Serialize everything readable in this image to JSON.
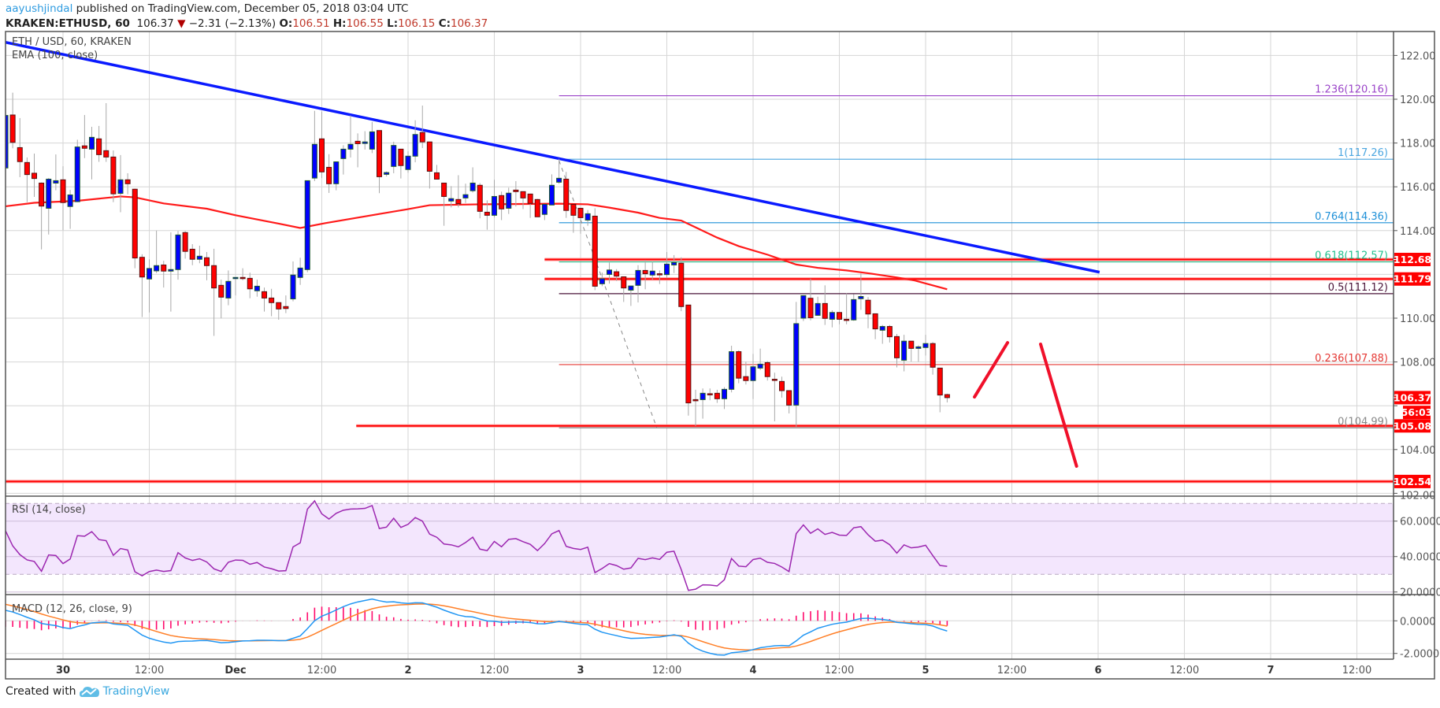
{
  "header": {
    "author": "aayushjindal",
    "published": "published on TradingView.com, December 05, 2018 03:04 UTC",
    "symbol": "KRAKEN:ETHUSD, 60",
    "last": "106.37",
    "change": "−2.31 (−2.13%)",
    "o_label": "O:",
    "o": "106.51",
    "h_label": "H:",
    "h": "106.55",
    "l_label": "L:",
    "l": "106.15",
    "c_label": "C:",
    "c": "106.37"
  },
  "legend": {
    "series": "ETH / USD, 60, KRAKEN",
    "ema": "EMA (100, close)",
    "rsi": "RSI (14, close)",
    "macd": "MACD (12, 26, close, 9)"
  },
  "footer": {
    "created": "Created with",
    "brand": "TradingView"
  },
  "colors": {
    "up": "#0000ff",
    "down": "#ff0000",
    "ema": "#ff1a1a",
    "trendline": "#0a1aff",
    "rsi": "#9c27b0",
    "rsi_band": "#f3e6fd",
    "macd": "#2196f3",
    "signal": "#ff7f27",
    "histogram": "#ff0a6c",
    "level": "#ff0000",
    "author": "#2e9be0"
  },
  "chart_data": {
    "type": "candlestick",
    "title": "ETH / USD, 60, KRAKEN",
    "interval_minutes": 60,
    "first_candle": "Nov 29 16:00",
    "ylim": [
      101.87,
      123.09
    ],
    "price_ticks": [
      "122.00",
      "120.00",
      "118.00",
      "116.00",
      "114.00",
      "112.00",
      "110.00",
      "108.00",
      "106.00",
      "104.00",
      "102.00"
    ],
    "time_labels": [
      {
        "label": "30",
        "hour": 8
      },
      {
        "label": "12:00",
        "hour": 20
      },
      {
        "label": "Dec",
        "hour": 32
      },
      {
        "label": "12:00",
        "hour": 44
      },
      {
        "label": "2",
        "hour": 56
      },
      {
        "label": "12:00",
        "hour": 68
      },
      {
        "label": "3",
        "hour": 80
      },
      {
        "label": "12:00",
        "hour": 92
      },
      {
        "label": "4",
        "hour": 104
      },
      {
        "label": "12:00",
        "hour": 116
      },
      {
        "label": "5",
        "hour": 128
      },
      {
        "label": "12:00",
        "hour": 140
      },
      {
        "label": "6",
        "hour": 152
      },
      {
        "label": "12:00",
        "hour": 164
      },
      {
        "label": "7",
        "hour": 176
      },
      {
        "label": "12:00",
        "hour": 188
      }
    ],
    "candles_ohlc": [
      [
        116.86,
        119.4,
        116.7,
        119.26
      ],
      [
        119.28,
        120.3,
        117.76,
        118.03
      ],
      [
        117.79,
        119.14,
        116.44,
        117.15
      ],
      [
        117.11,
        117.34,
        115.3,
        116.56
      ],
      [
        116.62,
        117.52,
        115.54,
        116.38
      ],
      [
        116.17,
        116.2,
        113.14,
        115.12
      ],
      [
        115.02,
        116.4,
        113.82,
        116.35
      ],
      [
        116.17,
        117.48,
        115.84,
        116.28
      ],
      [
        116.32,
        116.94,
        114.02,
        115.28
      ],
      [
        115.1,
        115.86,
        114.08,
        115.63
      ],
      [
        115.32,
        118.15,
        115.3,
        117.82
      ],
      [
        117.87,
        119.28,
        117.31,
        117.76
      ],
      [
        117.72,
        118.74,
        116.34,
        118.26
      ],
      [
        118.19,
        118.78,
        117.14,
        117.47
      ],
      [
        117.65,
        119.82,
        117.14,
        117.36
      ],
      [
        117.36,
        117.66,
        115.3,
        115.68
      ],
      [
        115.7,
        117.45,
        114.84,
        116.32
      ],
      [
        116.32,
        116.62,
        115.66,
        116.14
      ],
      [
        115.89,
        115.92,
        112.28,
        112.75
      ],
      [
        112.78,
        112.92,
        110.05,
        111.88
      ],
      [
        111.79,
        112.69,
        110.26,
        112.27
      ],
      [
        112.16,
        114.0,
        112.06,
        112.4
      ],
      [
        112.43,
        112.62,
        111.4,
        112.15
      ],
      [
        112.15,
        113.92,
        110.3,
        112.22
      ],
      [
        112.22,
        113.98,
        111.76,
        113.8
      ],
      [
        113.91,
        113.98,
        112.72,
        113.05
      ],
      [
        113.15,
        113.38,
        112.42,
        112.69
      ],
      [
        112.69,
        113.31,
        112.51,
        112.83
      ],
      [
        112.76,
        113.02,
        111.73,
        112.4
      ],
      [
        112.4,
        113.17,
        109.19,
        111.38
      ],
      [
        111.5,
        111.76,
        109.99,
        110.96
      ],
      [
        110.92,
        112.18,
        110.59,
        111.68
      ],
      [
        111.84,
        111.86,
        111.04,
        111.86
      ],
      [
        111.86,
        112.28,
        111.73,
        111.82
      ],
      [
        111.82,
        112.08,
        110.91,
        111.34
      ],
      [
        111.25,
        111.76,
        110.98,
        111.46
      ],
      [
        111.21,
        111.4,
        110.3,
        110.92
      ],
      [
        110.92,
        111.34,
        110.09,
        110.71
      ],
      [
        110.71,
        110.71,
        109.93,
        110.42
      ],
      [
        110.53,
        111.04,
        110.23,
        110.44
      ],
      [
        110.88,
        112.59,
        110.77,
        111.97
      ],
      [
        111.86,
        112.76,
        111.52,
        112.29
      ],
      [
        112.22,
        116.28,
        112.1,
        116.28
      ],
      [
        116.4,
        119.47,
        116.26,
        117.94
      ],
      [
        118.19,
        119.44,
        116.4,
        116.68
      ],
      [
        116.89,
        117.49,
        115.72,
        116.14
      ],
      [
        116.14,
        117.15,
        115.84,
        117.14
      ],
      [
        117.29,
        117.9,
        116.56,
        117.72
      ],
      [
        117.72,
        119.26,
        117.34,
        117.94
      ],
      [
        118.08,
        118.44,
        116.89,
        117.97
      ],
      [
        117.98,
        118.54,
        117.7,
        118.05
      ],
      [
        117.72,
        118.96,
        117.54,
        118.51
      ],
      [
        118.57,
        118.57,
        115.71,
        116.46
      ],
      [
        116.57,
        116.7,
        116.47,
        116.65
      ],
      [
        116.93,
        118.06,
        116.62,
        117.89
      ],
      [
        117.72,
        117.72,
        116.38,
        116.97
      ],
      [
        116.79,
        117.62,
        116.64,
        117.4
      ],
      [
        117.4,
        119.04,
        117.12,
        118.39
      ],
      [
        118.48,
        119.71,
        117.77,
        118.05
      ],
      [
        118.05,
        118.05,
        115.92,
        116.71
      ],
      [
        116.64,
        117.0,
        116.35,
        116.35
      ],
      [
        116.17,
        116.17,
        114.22,
        115.56
      ],
      [
        115.35,
        116.03,
        115.06,
        115.46
      ],
      [
        115.42,
        116.53,
        115.06,
        115.23
      ],
      [
        115.49,
        116.14,
        115.26,
        115.64
      ],
      [
        115.82,
        116.89,
        115.74,
        116.17
      ],
      [
        116.07,
        116.17,
        114.56,
        114.88
      ],
      [
        114.84,
        115.38,
        114.04,
        114.7
      ],
      [
        114.7,
        116.32,
        114.6,
        115.56
      ],
      [
        115.6,
        115.78,
        114.48,
        114.99
      ],
      [
        115.02,
        115.96,
        114.76,
        115.71
      ],
      [
        115.85,
        116.26,
        115.1,
        115.78
      ],
      [
        115.78,
        115.78,
        114.98,
        115.49
      ],
      [
        115.67,
        115.67,
        114.58,
        115.24
      ],
      [
        115.42,
        115.45,
        114.63,
        114.63
      ],
      [
        114.74,
        115.2,
        114.48,
        115.2
      ],
      [
        115.17,
        116.57,
        115.17,
        116.07
      ],
      [
        116.21,
        117.28,
        116.14,
        116.39
      ],
      [
        116.35,
        116.68,
        114.58,
        114.92
      ],
      [
        115.2,
        115.2,
        113.9,
        114.7
      ],
      [
        115.02,
        115.02,
        113.86,
        114.59
      ],
      [
        114.48,
        114.94,
        114.22,
        114.77
      ],
      [
        114.66,
        115.02,
        111.28,
        111.46
      ],
      [
        111.57,
        112.08,
        111.46,
        111.8
      ],
      [
        112.0,
        112.54,
        111.58,
        112.2
      ],
      [
        112.12,
        112.24,
        111.7,
        111.92
      ],
      [
        111.89,
        111.89,
        110.74,
        111.38
      ],
      [
        111.28,
        111.47,
        110.56,
        111.47
      ],
      [
        111.5,
        112.42,
        110.72,
        112.18
      ],
      [
        112.18,
        112.66,
        111.32,
        112.03
      ],
      [
        111.97,
        112.57,
        111.76,
        112.15
      ],
      [
        112.03,
        112.18,
        111.56,
        111.99
      ],
      [
        111.99,
        113.02,
        111.82,
        112.47
      ],
      [
        112.43,
        112.88,
        112.06,
        112.54
      ],
      [
        112.51,
        112.78,
        110.32,
        110.53
      ],
      [
        110.6,
        110.6,
        105.55,
        106.13
      ],
      [
        106.28,
        106.73,
        105.07,
        106.23
      ],
      [
        106.28,
        106.79,
        105.41,
        106.57
      ],
      [
        106.55,
        106.79,
        106.25,
        106.52
      ],
      [
        106.57,
        106.73,
        106.13,
        106.32
      ],
      [
        106.32,
        106.85,
        105.85,
        106.75
      ],
      [
        106.75,
        108.74,
        106.61,
        108.47
      ],
      [
        108.47,
        108.53,
        107.03,
        107.26
      ],
      [
        107.33,
        108.01,
        106.97,
        107.15
      ],
      [
        107.15,
        108.37,
        106.31,
        107.78
      ],
      [
        107.72,
        108.61,
        107.63,
        107.9
      ],
      [
        107.97,
        108.04,
        107.15,
        107.33
      ],
      [
        107.21,
        107.51,
        105.29,
        107.18
      ],
      [
        107.11,
        107.33,
        106.37,
        106.69
      ],
      [
        106.69,
        106.69,
        105.65,
        106.03
      ],
      [
        106.03,
        110.74,
        105.05,
        109.75
      ],
      [
        110.0,
        111.03,
        109.87,
        111.03
      ],
      [
        110.91,
        111.8,
        109.9,
        110.02
      ],
      [
        110.13,
        110.98,
        110.11,
        110.67
      ],
      [
        110.67,
        111.5,
        109.69,
        109.99
      ],
      [
        109.95,
        110.36,
        109.58,
        110.26
      ],
      [
        110.26,
        110.26,
        109.72,
        109.95
      ],
      [
        109.95,
        111.13,
        109.72,
        109.92
      ],
      [
        109.92,
        111.1,
        109.88,
        110.85
      ],
      [
        110.89,
        112.04,
        110.38,
        110.99
      ],
      [
        110.82,
        110.96,
        109.54,
        110.19
      ],
      [
        110.2,
        110.2,
        109.04,
        109.51
      ],
      [
        109.45,
        109.69,
        108.83,
        109.62
      ],
      [
        109.62,
        109.69,
        108.89,
        109.15
      ],
      [
        109.16,
        109.28,
        107.75,
        108.19
      ],
      [
        108.08,
        109.24,
        107.57,
        108.95
      ],
      [
        108.95,
        108.95,
        108.02,
        108.62
      ],
      [
        108.62,
        108.76,
        108.01,
        108.69
      ],
      [
        108.66,
        109.24,
        108.29,
        108.84
      ],
      [
        108.84,
        108.91,
        107.42,
        107.76
      ],
      [
        107.72,
        107.72,
        105.7,
        106.49
      ],
      [
        106.51,
        106.55,
        106.15,
        106.37
      ]
    ],
    "ema100": [
      [
        0,
        115.11
      ],
      [
        4,
        115.27
      ],
      [
        10,
        115.36
      ],
      [
        16,
        115.56
      ],
      [
        18,
        115.52
      ],
      [
        22,
        115.24
      ],
      [
        28,
        115.0
      ],
      [
        32,
        114.7
      ],
      [
        38,
        114.32
      ],
      [
        41,
        114.12
      ],
      [
        44.5,
        114.34
      ],
      [
        52,
        114.76
      ],
      [
        56,
        114.98
      ],
      [
        59,
        115.16
      ],
      [
        66,
        115.2
      ],
      [
        77,
        115.23
      ],
      [
        81,
        115.2
      ],
      [
        84,
        115.05
      ],
      [
        88,
        114.82
      ],
      [
        91,
        114.58
      ],
      [
        94,
        114.46
      ],
      [
        99,
        113.68
      ],
      [
        102,
        113.29
      ],
      [
        106,
        112.9
      ],
      [
        110,
        112.45
      ],
      [
        113,
        112.3
      ],
      [
        117,
        112.18
      ],
      [
        120.5,
        112.03
      ],
      [
        124,
        111.86
      ],
      [
        126.5,
        111.72
      ],
      [
        131,
        111.32
      ]
    ],
    "trendline": [
      [
        0,
        122.6
      ],
      [
        152.2,
        112.1
      ]
    ],
    "fib_start_hour": 77,
    "fib_dashed": [
      [
        77,
        117.2
      ],
      [
        90.6,
        105.0
      ]
    ],
    "fib_levels": [
      {
        "label": "1.236(120.16)",
        "price": 120.16,
        "color": "#9b45c9"
      },
      {
        "label": "1(117.26)",
        "price": 117.26,
        "color": "#4ba6e0"
      },
      {
        "label": "0.764(114.36)",
        "price": 114.36,
        "color": "#1e90d8"
      },
      {
        "label": "0.618(112.57)",
        "price": 112.57,
        "color": "#22c18e"
      },
      {
        "label": "0.5(111.12)",
        "price": 111.12,
        "color": "#4a1438"
      },
      {
        "label": "0.236(107.88)",
        "price": 107.88,
        "color": "#e53935"
      },
      {
        "label": "0(104.99)",
        "price": 104.99,
        "color": "#888888"
      }
    ],
    "horizontal_lines": [
      {
        "price": 112.68,
        "from_hour": 75
      },
      {
        "price": 111.79,
        "from_hour": 75
      },
      {
        "price": 105.08,
        "from_hour": 48.8
      },
      {
        "price": 102.54,
        "from_hour": 0
      }
    ],
    "price_tags": [
      {
        "text": "112.68",
        "price": 112.68
      },
      {
        "text": "111.79",
        "price": 111.79
      },
      {
        "text": "106.37",
        "price": 106.37
      },
      {
        "text": "56:03",
        "price": 105.75,
        "small": true
      },
      {
        "text": "105.08",
        "price": 105.08
      },
      {
        "text": "102.54",
        "price": 102.54
      }
    ],
    "arrows": [
      [
        [
          134.8,
          106.4
        ],
        [
          139.4,
          108.88
        ]
      ],
      [
        [
          144.0,
          108.81
        ],
        [
          149.0,
          103.24
        ]
      ]
    ],
    "rsi": {
      "period": 14,
      "upper": 70,
      "lower": 30,
      "ticks": [
        "60.0000",
        "40.0000",
        "20.0000"
      ]
    },
    "macd": {
      "fast": 12,
      "slow": 26,
      "signal": 9,
      "ticks": [
        "0.0000",
        "-2.0000"
      ]
    }
  }
}
